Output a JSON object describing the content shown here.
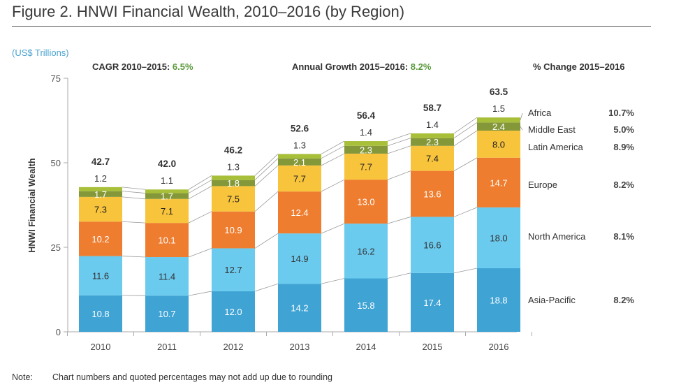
{
  "figure": {
    "title": "Figure 2. HNWI Financial Wealth, 2010–2016 (by Region)",
    "units": "(US$ Trillions)",
    "header_cagr_label": "CAGR 2010–2015: ",
    "header_cagr_value": "6.5%",
    "header_growth_label": "Annual Growth 2015–2016: ",
    "header_growth_value": "8.2%",
    "header_change_label": "% Change 2015–2016",
    "note_label": "Note:",
    "note_text": "Chart numbers and quoted percentages may not add up due to rounding"
  },
  "chart_data": {
    "type": "bar",
    "stacked": true,
    "title": "Figure 2. HNWI Financial Wealth, 2010–2016 (by Region)",
    "xlabel": "",
    "ylabel": "HNWI Financial Wealth",
    "units": "US$ Trillions",
    "ylim": [
      0,
      75
    ],
    "yticks": [
      0,
      25,
      50,
      75
    ],
    "grid": false,
    "legend": "right",
    "categories": [
      "2010",
      "2011",
      "2012",
      "2013",
      "2014",
      "2015",
      "2016"
    ],
    "totals": [
      "42.7",
      "42.0",
      "46.2",
      "52.6",
      "56.4",
      "58.7",
      "63.5"
    ],
    "series": [
      {
        "name": "Asia-Pacific",
        "color": "#3fa3d4",
        "label_color": "#ffffff",
        "change": "8.2%",
        "values": [
          10.8,
          10.7,
          12.0,
          14.2,
          15.8,
          17.4,
          18.8
        ]
      },
      {
        "name": "North America",
        "color": "#6bcbef",
        "label_color": "#333333",
        "change": "8.1%",
        "values": [
          11.6,
          11.4,
          12.7,
          14.9,
          16.2,
          16.6,
          18.0
        ]
      },
      {
        "name": "Europe",
        "color": "#ef7d2f",
        "label_color": "#ffffff",
        "change": "8.2%",
        "values": [
          10.2,
          10.1,
          10.9,
          12.4,
          13.0,
          13.6,
          14.7
        ]
      },
      {
        "name": "Latin America",
        "color": "#f8c43c",
        "label_color": "#222222",
        "change": "8.9%",
        "values": [
          7.3,
          7.1,
          7.5,
          7.7,
          7.7,
          7.4,
          8.0
        ]
      },
      {
        "name": "Middle East",
        "color": "#84983a",
        "label_color": "#ffffff",
        "change": "5.0%",
        "values": [
          1.7,
          1.7,
          1.8,
          2.1,
          2.3,
          2.3,
          2.4
        ]
      },
      {
        "name": "Africa",
        "color": "#a8bf3a",
        "label_color": "#333333",
        "change": "10.7%",
        "values": [
          1.2,
          1.1,
          1.3,
          1.3,
          1.4,
          1.4,
          1.5
        ]
      }
    ],
    "annotations": {
      "cagr_2010_2015": "6.5%",
      "annual_growth_2015_2016": "8.2%"
    }
  }
}
